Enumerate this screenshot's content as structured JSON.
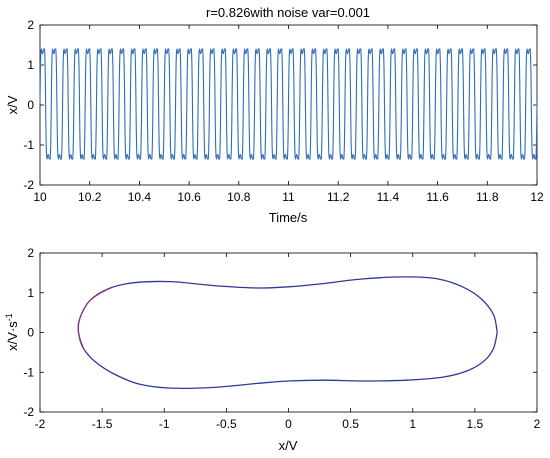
{
  "chart_data": [
    {
      "type": "line",
      "title": "r=0.826with noise var=0.001",
      "xlabel": "Time/s",
      "ylabel": "x/V",
      "xlim": [
        10,
        12
      ],
      "ylim": [
        -2,
        2
      ],
      "xticks": [
        10,
        10.2,
        10.4,
        10.6,
        10.8,
        11,
        11.2,
        11.4,
        11.6,
        11.8,
        12
      ],
      "xtick_labels": [
        "10",
        "10.2",
        "10.4",
        "10.6",
        "10.8",
        "11",
        "11.2",
        "11.4",
        "11.6",
        "11.8",
        "12"
      ],
      "yticks": [
        -2,
        -1,
        0,
        1,
        2
      ],
      "ytick_labels": [
        "-2",
        "-1",
        "0",
        "1",
        "2"
      ],
      "grid": false,
      "series": [
        {
          "color": "#2f6db5",
          "cycles": 44,
          "max": 1.4,
          "min": -1.35
        }
      ]
    },
    {
      "type": "line",
      "title": "",
      "xlabel": "x/V",
      "ylabel": "x/V·s",
      "ylabel_sup": "-1",
      "xlim": [
        -2,
        2
      ],
      "ylim": [
        -2,
        2
      ],
      "xticks": [
        -2,
        -1.5,
        -1,
        -0.5,
        0,
        0.5,
        1,
        1.5,
        2
      ],
      "xtick_labels": [
        "-2",
        "-1.5",
        "-1",
        "-0.5",
        "0",
        "0.5",
        "1",
        "1.5",
        "2"
      ],
      "yticks": [
        -2,
        -1,
        0,
        1,
        2
      ],
      "ytick_labels": [
        "-2",
        "-1",
        "0",
        "1",
        "2"
      ],
      "grid": false,
      "series": [
        {
          "color": "#2b3a9a",
          "accent_color": "#b0306a",
          "x": [
            1.68,
            1.65,
            1.55,
            1.4,
            1.2,
            0.95,
            0.6,
            0.25,
            0.0,
            -0.25,
            -0.6,
            -0.95,
            -1.25,
            -1.45,
            -1.6,
            -1.68,
            -1.69,
            -1.65,
            -1.55,
            -1.4,
            -1.2,
            -0.95,
            -0.6,
            -0.25,
            0.0,
            0.3,
            0.6,
            0.95,
            1.25,
            1.45,
            1.58,
            1.65,
            1.68
          ],
          "y": [
            0.0,
            0.45,
            0.85,
            1.15,
            1.35,
            1.4,
            1.35,
            1.22,
            1.15,
            1.12,
            1.18,
            1.28,
            1.25,
            1.1,
            0.8,
            0.35,
            0.0,
            -0.4,
            -0.75,
            -1.05,
            -1.3,
            -1.4,
            -1.38,
            -1.28,
            -1.22,
            -1.2,
            -1.22,
            -1.2,
            -1.12,
            -0.95,
            -0.7,
            -0.4,
            0.0
          ]
        }
      ]
    }
  ]
}
